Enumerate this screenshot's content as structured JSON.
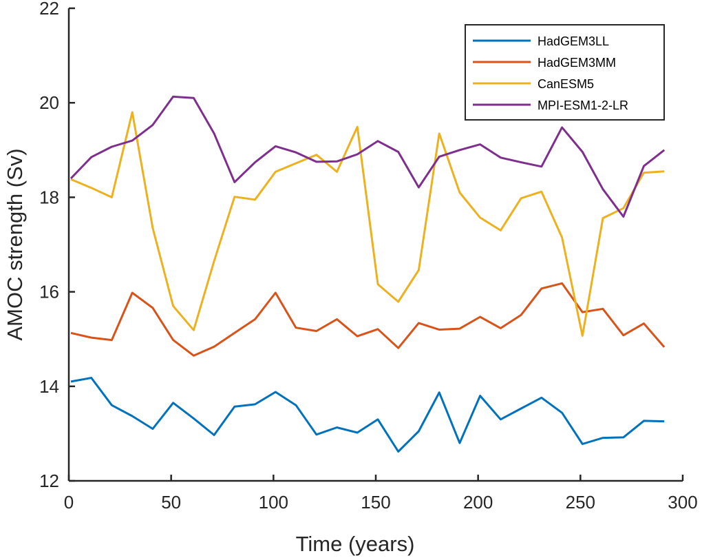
{
  "chart_data": {
    "type": "line",
    "xlabel": "Time (years)",
    "ylabel": "AMOC strength (Sv)",
    "xlim": [
      0,
      300
    ],
    "ylim": [
      12,
      22
    ],
    "xticks": [
      0,
      50,
      100,
      150,
      200,
      250,
      300
    ],
    "yticks": [
      12,
      14,
      16,
      18,
      20,
      22
    ],
    "grid": false,
    "legend": "top-right",
    "x": [
      1,
      11,
      21,
      31,
      41,
      51,
      61,
      71,
      81,
      91,
      101,
      111,
      121,
      131,
      141,
      151,
      161,
      171,
      181,
      191,
      201,
      211,
      221,
      231,
      241,
      251,
      261,
      271,
      281,
      291
    ],
    "series": [
      {
        "name": "HadGEM3LL",
        "color": "#0072BD",
        "values": [
          14.1,
          14.18,
          13.6,
          13.37,
          13.1,
          13.65,
          13.32,
          12.97,
          13.57,
          13.62,
          13.88,
          13.6,
          12.98,
          13.13,
          13.02,
          13.3,
          12.62,
          13.05,
          13.87,
          12.8,
          13.8,
          13.3,
          13.53,
          13.76,
          13.44,
          12.78,
          12.91,
          12.92,
          13.27,
          13.26
        ]
      },
      {
        "name": "HadGEM3MM",
        "color": "#D95319",
        "values": [
          15.13,
          15.03,
          14.98,
          15.98,
          15.66,
          14.98,
          14.65,
          14.84,
          15.13,
          15.42,
          15.98,
          15.24,
          15.17,
          15.42,
          15.06,
          15.21,
          14.81,
          15.34,
          15.2,
          15.22,
          15.47,
          15.23,
          15.51,
          16.07,
          16.18,
          15.57,
          15.64,
          15.08,
          15.33,
          14.83
        ]
      },
      {
        "name": "CanESM5",
        "color": "#EDB120",
        "values": [
          18.38,
          18.2,
          18.0,
          19.8,
          17.35,
          15.7,
          15.19,
          16.65,
          18.01,
          17.95,
          18.54,
          18.72,
          18.9,
          18.54,
          19.49,
          16.16,
          15.79,
          16.46,
          19.35,
          18.1,
          17.57,
          17.3,
          17.98,
          18.12,
          17.15,
          15.07,
          17.56,
          17.77,
          18.52,
          18.55
        ]
      },
      {
        "name": "MPI-ESM1-2-LR",
        "color": "#7E2F8E",
        "values": [
          18.4,
          18.85,
          19.07,
          19.2,
          19.53,
          20.13,
          20.1,
          19.35,
          18.32,
          18.74,
          19.08,
          18.95,
          18.75,
          18.76,
          18.91,
          19.19,
          18.96,
          18.21,
          18.86,
          19.0,
          19.12,
          18.84,
          18.74,
          18.65,
          19.48,
          18.96,
          18.17,
          17.59,
          18.66,
          19.0
        ]
      }
    ]
  }
}
